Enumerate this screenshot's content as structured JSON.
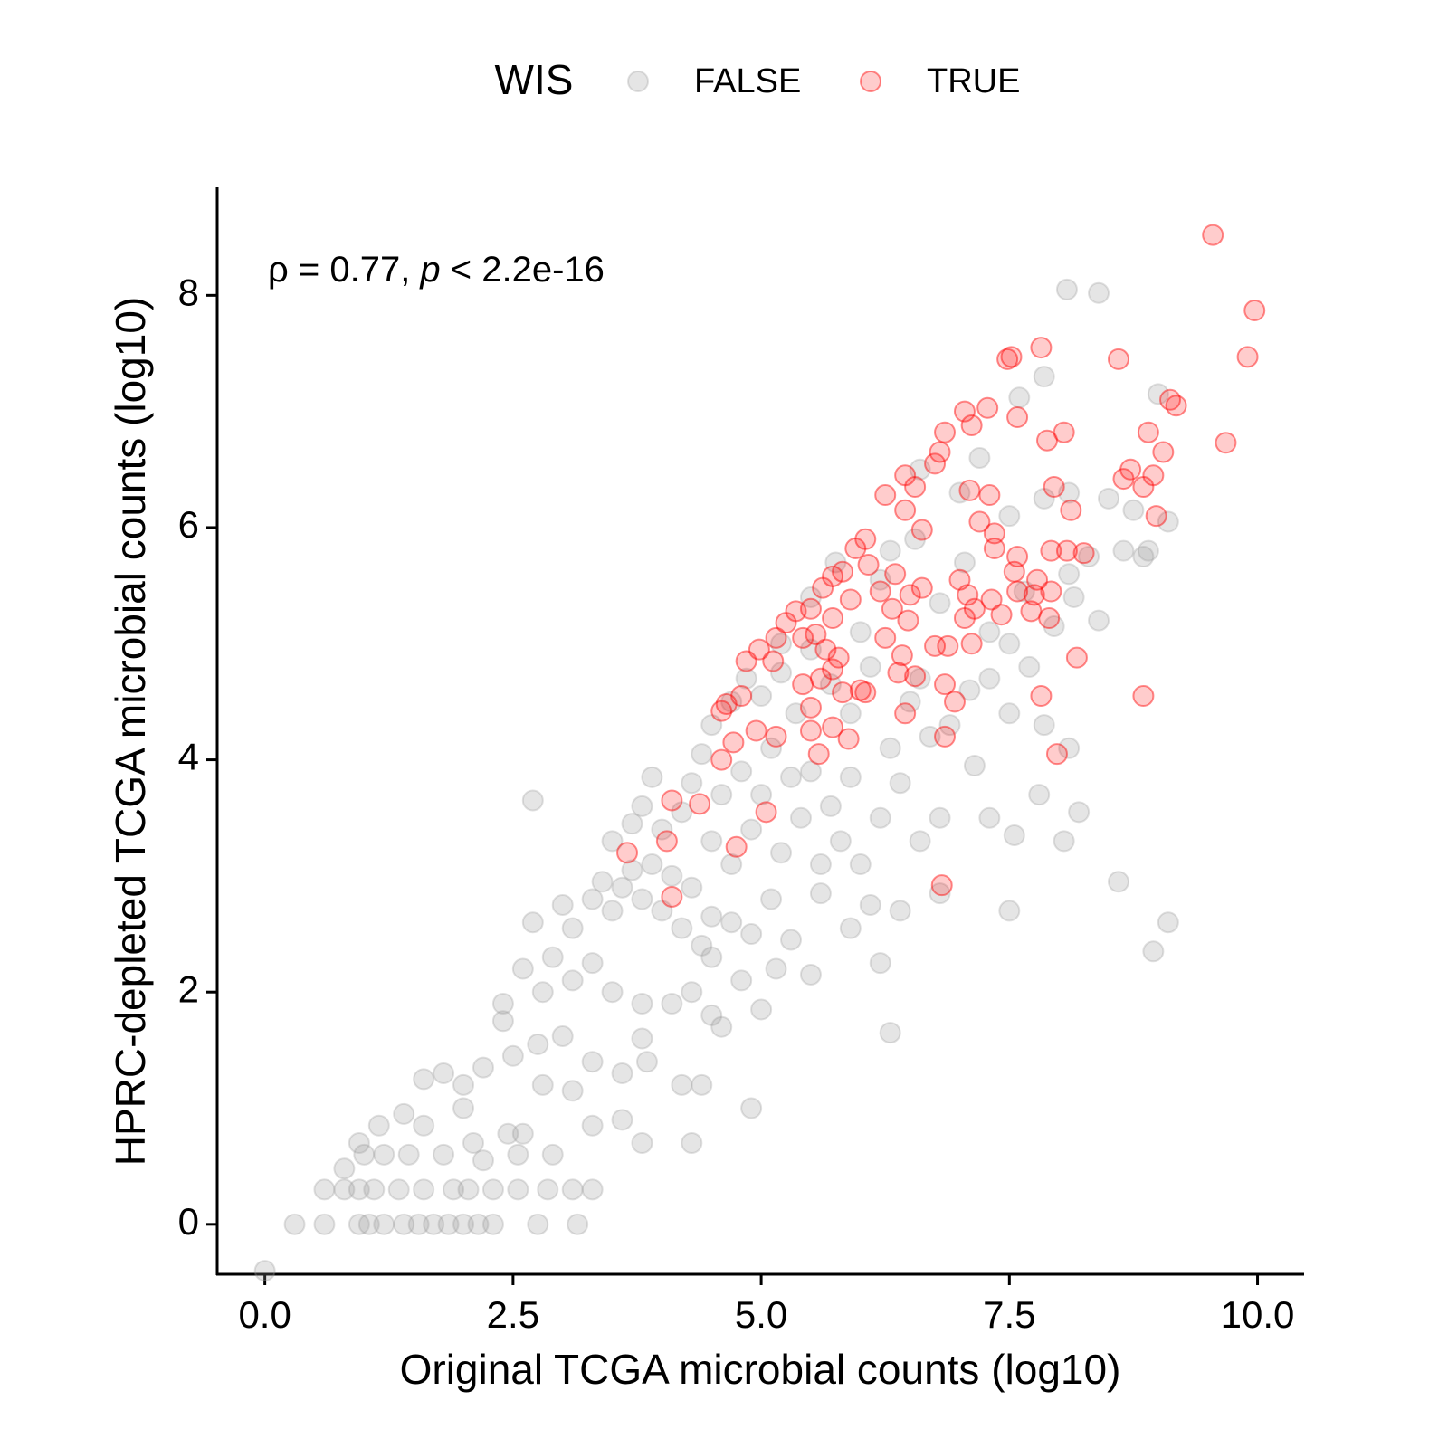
{
  "chart_data": {
    "type": "scatter",
    "legend_title": "WIS",
    "annotation": [
      "ρ = 0.77, ",
      "p",
      " < 2.2e-16"
    ],
    "xlabel": "Original TCGA microbial counts (log10)",
    "ylabel": "HPRC-depleted TCGA microbial counts (log10)",
    "xlim": [
      -0.48,
      10.46
    ],
    "ylim": [
      -0.43,
      8.93
    ],
    "xticks": [
      {
        "value": 0,
        "label": "0.0"
      },
      2.5,
      {
        "value": 5,
        "label": "5.0"
      },
      7.5,
      {
        "value": 10,
        "label": "10.0"
      }
    ],
    "yticks": [
      0,
      2,
      4,
      6,
      8
    ],
    "grid": false,
    "legend_position": "top",
    "series": [
      {
        "name": "FALSE",
        "color": "#999999",
        "x": [
          0,
          0.3,
          0.6,
          0.95,
          1.05,
          1.2,
          1.4,
          1.55,
          1.7,
          1.85,
          2.0,
          2.15,
          2.3,
          2.75,
          3.15,
          0.6,
          0.8,
          0.95,
          1.1,
          1.35,
          1.6,
          1.9,
          2.05,
          2.3,
          2.55,
          2.85,
          3.1,
          3.3,
          0.8,
          1.0,
          1.2,
          1.45,
          1.8,
          2.2,
          2.55,
          0.95,
          1.15,
          1.4,
          1.6,
          2.1,
          2.45,
          2.6,
          2.9,
          3.3,
          3.6,
          3.8,
          4.3,
          1.6,
          1.8,
          2.0,
          2.2,
          2.5,
          2.75,
          3.0,
          3.3,
          3.6,
          3.85,
          4.2,
          4.4,
          4.9,
          2.0,
          2.8,
          3.1,
          2.4,
          2.4,
          2.8,
          2.6,
          2.9,
          3.1,
          3.3,
          3.5,
          3.8,
          4.1,
          4.3,
          4.5,
          4.6,
          5.0,
          3.8,
          4.5,
          4.8,
          5.15,
          5.5,
          6.3,
          6.2,
          2.7,
          3.0,
          3.1,
          3.3,
          3.4,
          3.5,
          3.6,
          3.7,
          3.8,
          3.9,
          4.0,
          4.1,
          4.2,
          4.3,
          4.4,
          4.5,
          4.7,
          4.9,
          5.1,
          5.3,
          5.6,
          5.9,
          6.1,
          6.4,
          6.8,
          7.5,
          8.6,
          9.1,
          8.95,
          2.7,
          3.5,
          3.7,
          3.8,
          3.9,
          4.0,
          4.2,
          4.3,
          4.4,
          4.5,
          4.6,
          4.7,
          4.8,
          4.9,
          5.0,
          5.1,
          5.2,
          5.3,
          5.4,
          5.5,
          5.6,
          5.7,
          5.8,
          5.9,
          6.0,
          6.2,
          6.4,
          6.6,
          6.8,
          7.3,
          7.55,
          7.8,
          8.05,
          8.2,
          4.5,
          4.7,
          4.85,
          5.0,
          5.2,
          5.35,
          5.5,
          5.7,
          5.9,
          6.1,
          6.3,
          6.5,
          6.7,
          6.6,
          6.9,
          7.1,
          7.3,
          7.5,
          7.7,
          7.85,
          8.1,
          7.15,
          5.2,
          5.5,
          5.75,
          6.0,
          6.2,
          6.3,
          6.55,
          6.8,
          7.05,
          7.3,
          7.5,
          7.65,
          7.95,
          8.1,
          8.15,
          8.4,
          8.3,
          8.65,
          8.85,
          8.9,
          6.6,
          7.0,
          7.2,
          7.5,
          7.85,
          8.1,
          8.5,
          8.75,
          9.1,
          7.6,
          7.85,
          9.0,
          8.08,
          8.4
        ],
        "values": [
          -0.4,
          0,
          0,
          0,
          0,
          0,
          0,
          0,
          0,
          0,
          0,
          0,
          0,
          0,
          0,
          0.3,
          0.3,
          0.3,
          0.3,
          0.3,
          0.3,
          0.3,
          0.3,
          0.3,
          0.3,
          0.3,
          0.3,
          0.3,
          0.48,
          0.6,
          0.6,
          0.6,
          0.6,
          0.55,
          0.6,
          0.7,
          0.85,
          0.95,
          0.85,
          0.7,
          0.78,
          0.78,
          0.6,
          0.85,
          0.9,
          0.7,
          0.7,
          1.25,
          1.3,
          1.2,
          1.35,
          1.45,
          1.55,
          1.62,
          1.4,
          1.3,
          1.4,
          1.2,
          1.2,
          1.0,
          1.0,
          1.2,
          1.15,
          1.75,
          1.9,
          2.0,
          2.2,
          2.3,
          2.1,
          2.25,
          2.0,
          1.9,
          1.9,
          2.0,
          1.8,
          1.7,
          1.85,
          1.6,
          2.3,
          2.1,
          2.2,
          2.15,
          1.65,
          2.25,
          2.6,
          2.75,
          2.55,
          2.8,
          2.95,
          2.7,
          2.9,
          3.05,
          2.8,
          3.1,
          2.7,
          3.0,
          2.55,
          2.9,
          2.4,
          2.65,
          2.6,
          2.5,
          2.8,
          2.45,
          2.85,
          2.55,
          2.75,
          2.7,
          2.85,
          2.7,
          2.95,
          2.6,
          2.35,
          3.65,
          3.3,
          3.45,
          3.6,
          3.85,
          3.4,
          3.55,
          3.8,
          4.05,
          3.3,
          3.7,
          3.1,
          3.9,
          3.4,
          3.7,
          4.1,
          3.2,
          3.85,
          3.5,
          3.9,
          3.1,
          3.6,
          3.3,
          3.85,
          3.1,
          3.5,
          3.8,
          3.3,
          3.5,
          3.5,
          3.35,
          3.7,
          3.3,
          3.55,
          4.3,
          4.5,
          4.7,
          4.55,
          4.75,
          4.4,
          4.95,
          4.65,
          4.4,
          4.8,
          4.1,
          4.5,
          4.2,
          4.7,
          4.3,
          4.6,
          4.7,
          4.4,
          4.8,
          4.3,
          4.1,
          3.95,
          5.0,
          5.4,
          5.7,
          5.1,
          5.55,
          5.8,
          5.9,
          5.35,
          5.7,
          5.1,
          5.0,
          5.45,
          5.15,
          5.6,
          5.4,
          5.2,
          5.75,
          5.8,
          5.75,
          5.8,
          6.5,
          6.3,
          6.6,
          6.1,
          6.25,
          6.3,
          6.25,
          6.15,
          6.05,
          7.12,
          7.3,
          7.15,
          8.05,
          8.02
        ]
      },
      {
        "name": "TRUE",
        "color": "#ff0000",
        "x": [
          9.55,
          9.97,
          9.9,
          9.68,
          9.12,
          9.18,
          8.9,
          9.05,
          8.95,
          8.72,
          8.65,
          8.85,
          8.98,
          8.6,
          7.82,
          7.48,
          7.52,
          7.05,
          7.28,
          7.58,
          7.12,
          8.05,
          7.88,
          6.85,
          6.8,
          6.75,
          6.45,
          6.55,
          6.25,
          6.45,
          6.62,
          7.1,
          7.3,
          7.2,
          7.35,
          7.95,
          8.12,
          7.35,
          7.58,
          7.92,
          8.08,
          8.25,
          7.55,
          7.78,
          7.58,
          7.32,
          7.0,
          7.08,
          7.15,
          7.05,
          7.42,
          7.75,
          7.92,
          7.72,
          7.9,
          8.18,
          7.82,
          8.85,
          7.98,
          6.62,
          6.5,
          6.32,
          6.48,
          6.25,
          6.42,
          6.38,
          6.55,
          6.75,
          6.88,
          7.12,
          6.85,
          6.95,
          6.85,
          6.05,
          5.95,
          6.08,
          5.82,
          5.72,
          5.62,
          5.5,
          5.35,
          5.25,
          5.15,
          5.42,
          5.55,
          5.72,
          5.9,
          6.2,
          5.65,
          5.78,
          5.12,
          4.98,
          4.85,
          5.72,
          5.6,
          5.82,
          6.05,
          5.5,
          5.72,
          5.5,
          5.88,
          5.58,
          5.15,
          4.95,
          4.8,
          4.65,
          4.6,
          4.72,
          4.6,
          5.05,
          4.75,
          4.38,
          4.1,
          4.05,
          3.65,
          4.1,
          6.82,
          6.0,
          6.45,
          6.35,
          5.42
        ],
        "values": [
          8.52,
          7.87,
          7.47,
          6.73,
          7.1,
          7.05,
          6.82,
          6.65,
          6.45,
          6.5,
          6.42,
          6.35,
          6.1,
          7.45,
          7.55,
          7.45,
          7.47,
          7.0,
          7.03,
          6.95,
          6.88,
          6.82,
          6.75,
          6.82,
          6.65,
          6.55,
          6.45,
          6.35,
          6.28,
          6.15,
          5.98,
          6.32,
          6.28,
          6.05,
          5.95,
          6.35,
          6.15,
          5.82,
          5.75,
          5.8,
          5.8,
          5.78,
          5.62,
          5.55,
          5.45,
          5.38,
          5.55,
          5.42,
          5.3,
          5.22,
          5.25,
          5.42,
          5.45,
          5.28,
          5.22,
          4.88,
          4.55,
          4.55,
          4.05,
          5.48,
          5.42,
          5.3,
          5.2,
          5.05,
          4.9,
          4.75,
          4.72,
          4.98,
          4.98,
          5.0,
          4.65,
          4.5,
          4.2,
          5.9,
          5.82,
          5.68,
          5.62,
          5.58,
          5.48,
          5.3,
          5.28,
          5.18,
          5.05,
          5.05,
          5.08,
          5.22,
          5.38,
          5.45,
          4.95,
          4.88,
          4.85,
          4.95,
          4.85,
          4.78,
          4.7,
          4.58,
          4.58,
          4.45,
          4.28,
          4.25,
          4.18,
          4.05,
          4.2,
          4.25,
          4.55,
          4.48,
          4.42,
          4.15,
          4.0,
          3.55,
          3.25,
          3.62,
          3.65,
          3.3,
          3.2,
          2.82,
          2.92,
          4.6,
          4.4,
          5.6,
          4.65
        ]
      }
    ]
  }
}
